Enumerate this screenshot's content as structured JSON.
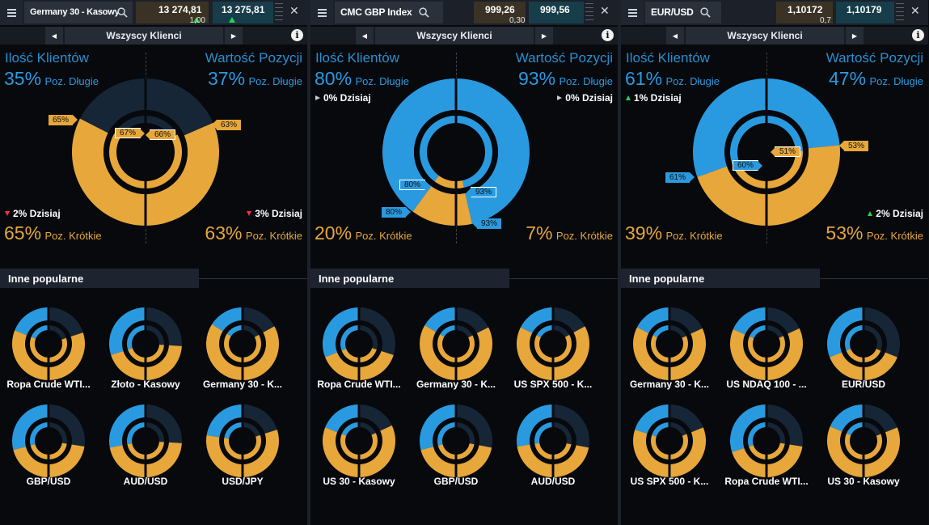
{
  "colors": {
    "blue": "#2a9ae0",
    "gold": "#e7a73a",
    "dark": "#162636",
    "panel_bg": "#07090d"
  },
  "icons": {
    "menu": "hamburger-icon",
    "search": "search-icon",
    "close": "close-icon",
    "info": "info-icon"
  },
  "panels": [
    {
      "instrument": "Germany 30 - Kasowy",
      "sell": "13 274,81",
      "buy": "13 275,81",
      "spread": "1,00",
      "filter": "Wszyscy Klienci",
      "clients_title": "Ilość Klientów",
      "position_title": "Wartość Pozycji",
      "clients_long_pct": "35%",
      "long_label": "Poz. Długie",
      "position_long_pct": "37%",
      "clients_short_pct": "65%",
      "short_label": "Poz. Krótkie",
      "position_short_pct": "63%",
      "clients_today": "2% Dzisiaj",
      "position_today": "3% Dzisiaj",
      "tags": [
        "65%",
        "67%",
        "66%",
        "63%"
      ],
      "other_label": "Inne popularne",
      "instruments": [
        "Ropa Crude WTI...",
        "Złoto - Kasowy",
        "Germany 30 - K...",
        "GBP/USD",
        "AUD/USD",
        "USD/JPY"
      ]
    },
    {
      "instrument": "CMC GBP Index",
      "sell": "999,26",
      "buy": "999,56",
      "spread": "0,30",
      "filter": "Wszyscy Klienci",
      "clients_title": "Ilość Klientów",
      "position_title": "Wartość Pozycji",
      "clients_long_pct": "80%",
      "long_label": "Poz. Długie",
      "position_long_pct": "93%",
      "clients_short_pct": "20%",
      "short_label": "Poz. Krótkie",
      "position_short_pct": "7%",
      "clients_today": "0% Dzisiaj",
      "position_today": "0% Dzisiaj",
      "tags": [
        "80%",
        "93%",
        "80%",
        "93%"
      ],
      "other_label": "Inne popularne",
      "instruments": [
        "Ropa Crude WTI...",
        "Germany 30 - K...",
        "US SPX 500 - K...",
        "US 30 - Kasowy",
        "GBP/USD",
        "AUD/USD"
      ]
    },
    {
      "instrument": "EUR/USD",
      "sell": "1,10172",
      "buy": "1,10179",
      "spread": "0,7",
      "filter": "Wszyscy Klienci",
      "clients_title": "Ilość Klientów",
      "position_title": "Wartość Pozycji",
      "clients_long_pct": "61%",
      "long_label": "Poz. Długie",
      "position_long_pct": "47%",
      "clients_short_pct": "39%",
      "short_label": "Poz. Krótkie",
      "position_short_pct": "53%",
      "clients_today": "1% Dzisiaj",
      "position_today": "2% Dzisiaj",
      "tags": [
        "51%",
        "53%",
        "60%",
        "61%"
      ],
      "other_label": "Inne popularne",
      "instruments": [
        "Germany 30 - K...",
        "US NDAQ 100 - ...",
        "EUR/USD",
        "US SPX 500 - K...",
        "Ropa Crude WTI...",
        "US 30 - Kasowy"
      ]
    }
  ],
  "sentiment": {
    "panels": [
      {
        "clients_long": 35,
        "position_long": 37,
        "inner_clients_long": 33,
        "inner_position_long": 34,
        "minis": [
          [
            38,
            40
          ],
          [
            60,
            52
          ],
          [
            32,
            34
          ],
          [
            58,
            55
          ],
          [
            56,
            52
          ],
          [
            45,
            40
          ]
        ]
      },
      {
        "clients_long": 80,
        "position_long": 93,
        "inner_clients_long": 80,
        "inner_position_long": 93,
        "minis": [
          [
            62,
            60
          ],
          [
            33,
            35
          ],
          [
            35,
            34
          ],
          [
            38,
            36
          ],
          [
            58,
            56
          ],
          [
            55,
            56
          ]
        ]
      },
      {
        "clients_long": 61,
        "position_long": 47,
        "inner_clients_long": 60,
        "inner_position_long": 49,
        "minis": [
          [
            35,
            36
          ],
          [
            37,
            36
          ],
          [
            62,
            62
          ],
          [
            40,
            38
          ],
          [
            60,
            55
          ],
          [
            37,
            38
          ]
        ]
      }
    ]
  }
}
